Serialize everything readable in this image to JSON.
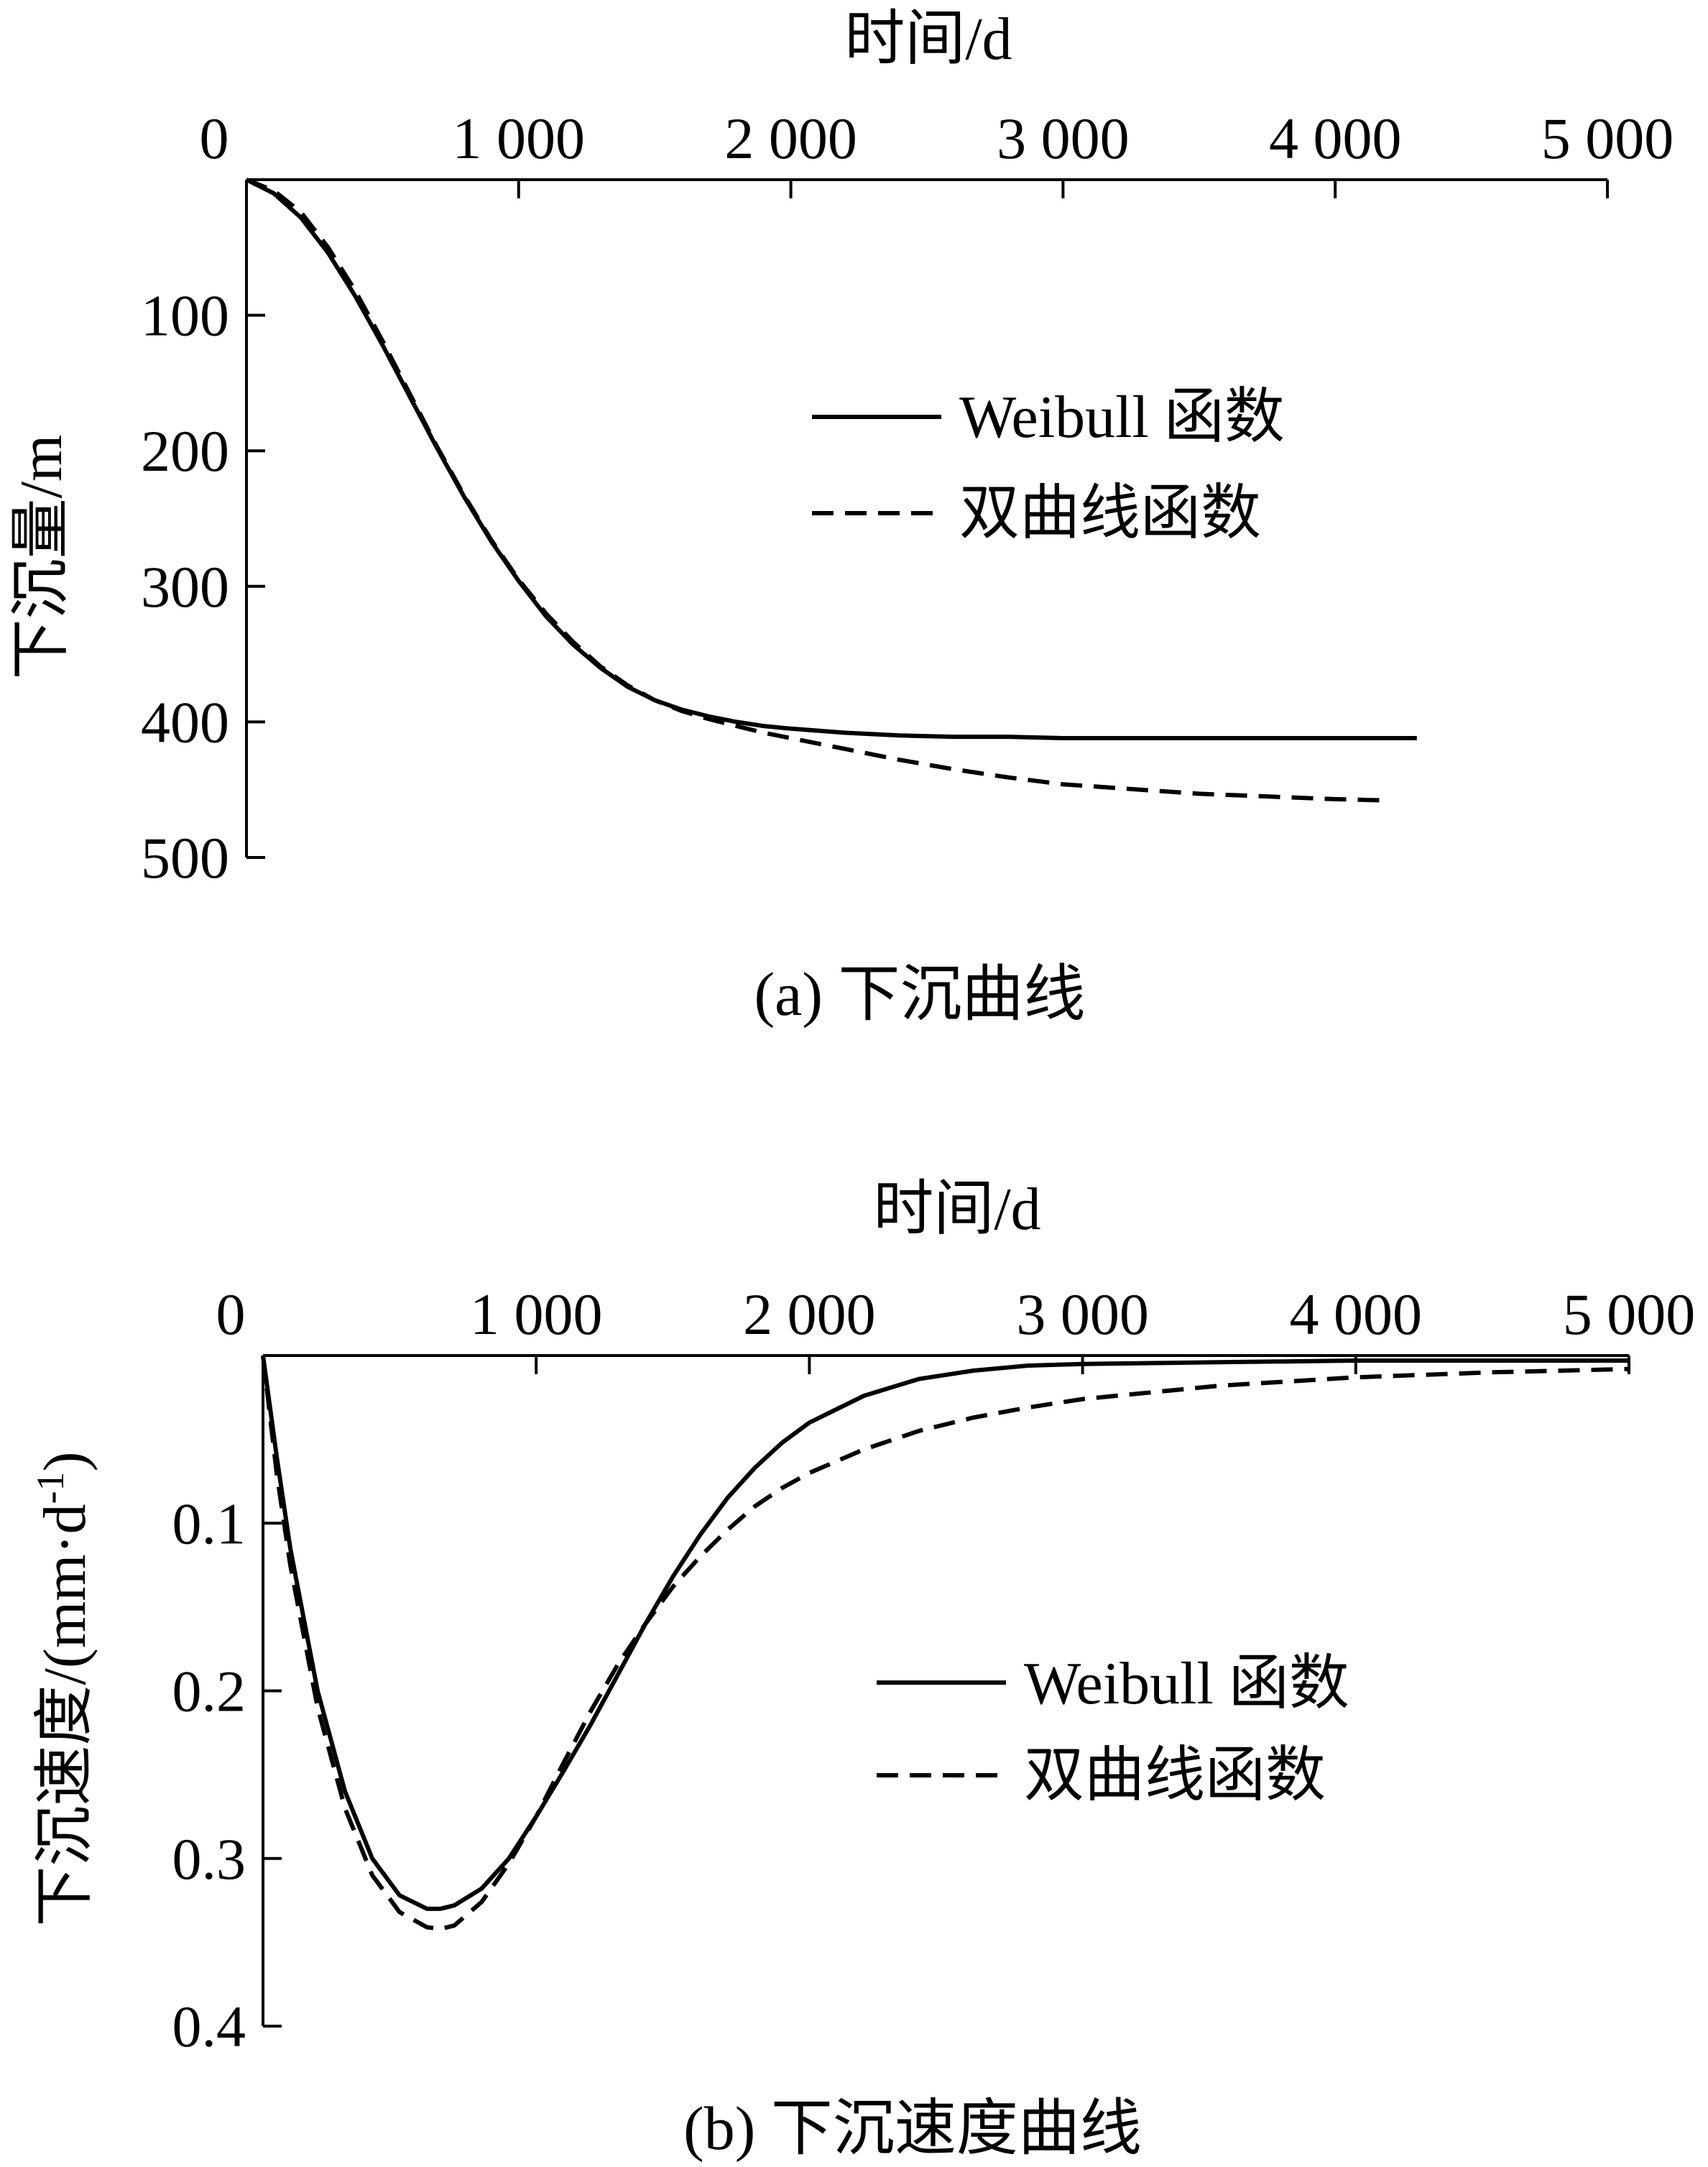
{
  "chart_data": [
    {
      "type": "line",
      "caption": "(a) 下沉曲线",
      "xlabel": "时间/d",
      "ylabel": "下沉量/m",
      "x_ticks": [
        "0",
        "1 000",
        "2 000",
        "3 000",
        "4 000",
        "5 000"
      ],
      "y_ticks": [
        "100",
        "200",
        "300",
        "400",
        "500"
      ],
      "xlim": [
        0,
        5000
      ],
      "ylim": [
        0,
        500
      ],
      "x_axis_position": "top",
      "y_inverted": true,
      "grid": false,
      "legend_position": "right-middle",
      "series": [
        {
          "name": "Weibull 函数",
          "style": "solid",
          "x": [
            0,
            100,
            200,
            300,
            400,
            500,
            600,
            700,
            800,
            900,
            1000,
            1100,
            1200,
            1300,
            1400,
            1500,
            1600,
            1700,
            1800,
            1900,
            2000,
            2200,
            2400,
            2600,
            2800,
            3000,
            3500,
            4000,
            4300
          ],
          "y": [
            0,
            10,
            28,
            54,
            86,
            122,
            160,
            198,
            234,
            267,
            296,
            322,
            343,
            360,
            374,
            384,
            391,
            396,
            400,
            403,
            405,
            408,
            410,
            411,
            411,
            412,
            412,
            412,
            412
          ]
        },
        {
          "name": "双曲线函数",
          "style": "dashed",
          "x": [
            0,
            100,
            200,
            300,
            400,
            500,
            600,
            700,
            800,
            900,
            1000,
            1100,
            1200,
            1300,
            1400,
            1500,
            1600,
            1700,
            1800,
            1900,
            2000,
            2200,
            2400,
            2600,
            2800,
            3000,
            3500,
            4000,
            4200
          ],
          "y": [
            0,
            8,
            24,
            50,
            82,
            119,
            158,
            197,
            233,
            266,
            295,
            320,
            341,
            359,
            373,
            384,
            392,
            398,
            403,
            408,
            412,
            420,
            428,
            435,
            441,
            446,
            453,
            457,
            458
          ]
        }
      ]
    },
    {
      "type": "line",
      "caption": "(b) 下沉速度曲线",
      "xlabel": "时间/d",
      "ylabel": "下沉速度/(mm·d",
      "ylabel_sup": "-1",
      "ylabel_close": ")",
      "x_ticks": [
        "0",
        "1 000",
        "2 000",
        "3 000",
        "4 000",
        "5 000"
      ],
      "y_ticks": [
        "0.1",
        "0.2",
        "0.3",
        "0.4"
      ],
      "xlim": [
        0,
        5000
      ],
      "ylim": [
        0,
        0.4
      ],
      "x_axis_position": "top",
      "y_inverted": true,
      "grid": false,
      "legend_position": "right-middle",
      "series": [
        {
          "name": "Weibull 函数",
          "style": "solid",
          "x": [
            0,
            50,
            100,
            200,
            300,
            400,
            500,
            600,
            650,
            700,
            800,
            900,
            1000,
            1100,
            1200,
            1300,
            1400,
            1500,
            1600,
            1700,
            1800,
            1900,
            2000,
            2200,
            2400,
            2600,
            2800,
            3000,
            3500,
            4000,
            4500,
            5000
          ],
          "y": [
            0,
            0.06,
            0.115,
            0.2,
            0.26,
            0.3,
            0.322,
            0.33,
            0.33,
            0.328,
            0.318,
            0.3,
            0.275,
            0.248,
            0.22,
            0.19,
            0.16,
            0.132,
            0.107,
            0.085,
            0.067,
            0.052,
            0.04,
            0.024,
            0.014,
            0.009,
            0.006,
            0.005,
            0.004,
            0.003,
            0.003,
            0.003
          ]
        },
        {
          "name": "双曲线函数",
          "style": "dashed",
          "x": [
            0,
            50,
            100,
            200,
            300,
            400,
            500,
            600,
            650,
            700,
            800,
            900,
            1000,
            1100,
            1200,
            1300,
            1400,
            1500,
            1600,
            1700,
            1800,
            1900,
            2000,
            2200,
            2400,
            2600,
            2800,
            3000,
            3500,
            4000,
            4500,
            5000
          ],
          "y": [
            0,
            0.07,
            0.125,
            0.21,
            0.27,
            0.31,
            0.332,
            0.341,
            0.342,
            0.34,
            0.326,
            0.303,
            0.275,
            0.243,
            0.212,
            0.184,
            0.16,
            0.138,
            0.12,
            0.104,
            0.09,
            0.079,
            0.07,
            0.056,
            0.045,
            0.037,
            0.031,
            0.026,
            0.018,
            0.013,
            0.01,
            0.008
          ]
        }
      ]
    }
  ]
}
